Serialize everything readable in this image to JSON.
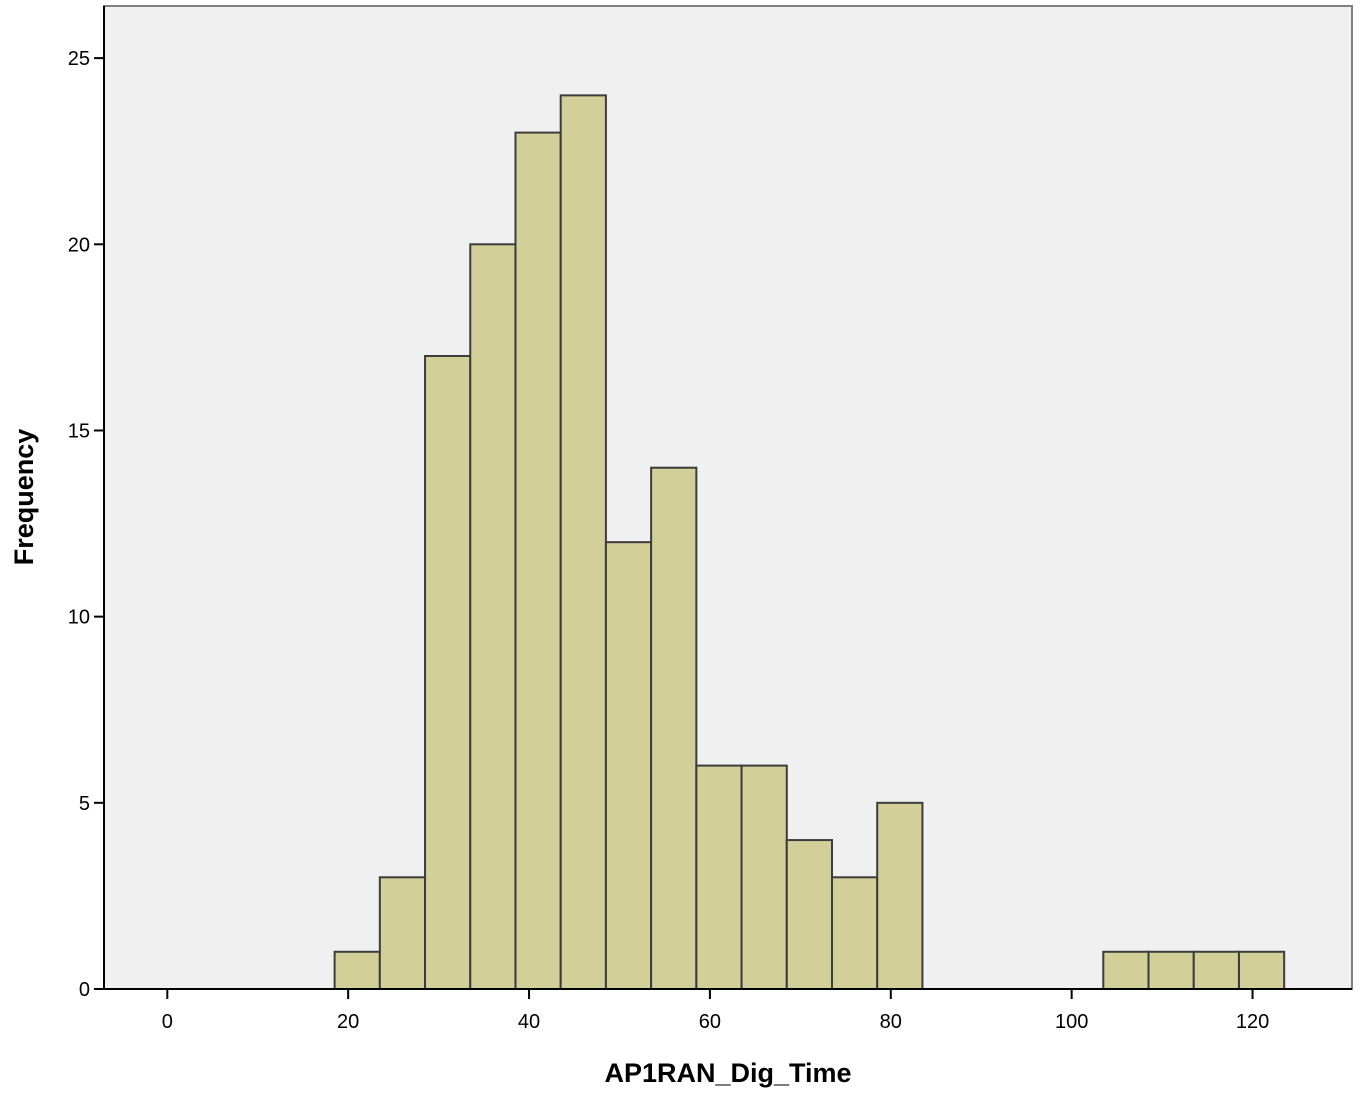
{
  "chart_data": {
    "type": "bar",
    "subtype": "histogram",
    "xlabel": "AP1RAN_Dig_Time",
    "ylabel": "Frequency",
    "xlim": [
      -7,
      131
    ],
    "ylim": [
      0,
      26.4
    ],
    "x_ticks": [
      0,
      20,
      40,
      60,
      80,
      100,
      120
    ],
    "y_ticks": [
      0,
      5,
      10,
      15,
      20,
      25
    ],
    "bin_width": 5,
    "bins": [
      {
        "start": 18.5,
        "end": 23.5,
        "count": 1
      },
      {
        "start": 23.5,
        "end": 28.5,
        "count": 3
      },
      {
        "start": 28.5,
        "end": 33.5,
        "count": 17
      },
      {
        "start": 33.5,
        "end": 38.5,
        "count": 20
      },
      {
        "start": 38.5,
        "end": 43.5,
        "count": 23
      },
      {
        "start": 43.5,
        "end": 48.5,
        "count": 24
      },
      {
        "start": 48.5,
        "end": 53.5,
        "count": 12
      },
      {
        "start": 53.5,
        "end": 58.5,
        "count": 14
      },
      {
        "start": 58.5,
        "end": 63.5,
        "count": 6
      },
      {
        "start": 63.5,
        "end": 68.5,
        "count": 6
      },
      {
        "start": 68.5,
        "end": 73.5,
        "count": 4
      },
      {
        "start": 73.5,
        "end": 78.5,
        "count": 3
      },
      {
        "start": 78.5,
        "end": 83.5,
        "count": 5
      },
      {
        "start": 103.5,
        "end": 108.5,
        "count": 1
      },
      {
        "start": 108.5,
        "end": 113.5,
        "count": 1
      },
      {
        "start": 113.5,
        "end": 118.5,
        "count": 1
      },
      {
        "start": 118.5,
        "end": 123.5,
        "count": 1
      }
    ],
    "grid": false,
    "legend": "none",
    "colors": {
      "plot_background": "#f0f0f0",
      "bar_fill": "#d3cf99",
      "bar_stroke": "#3c3c3c",
      "frame": "#808080"
    }
  }
}
